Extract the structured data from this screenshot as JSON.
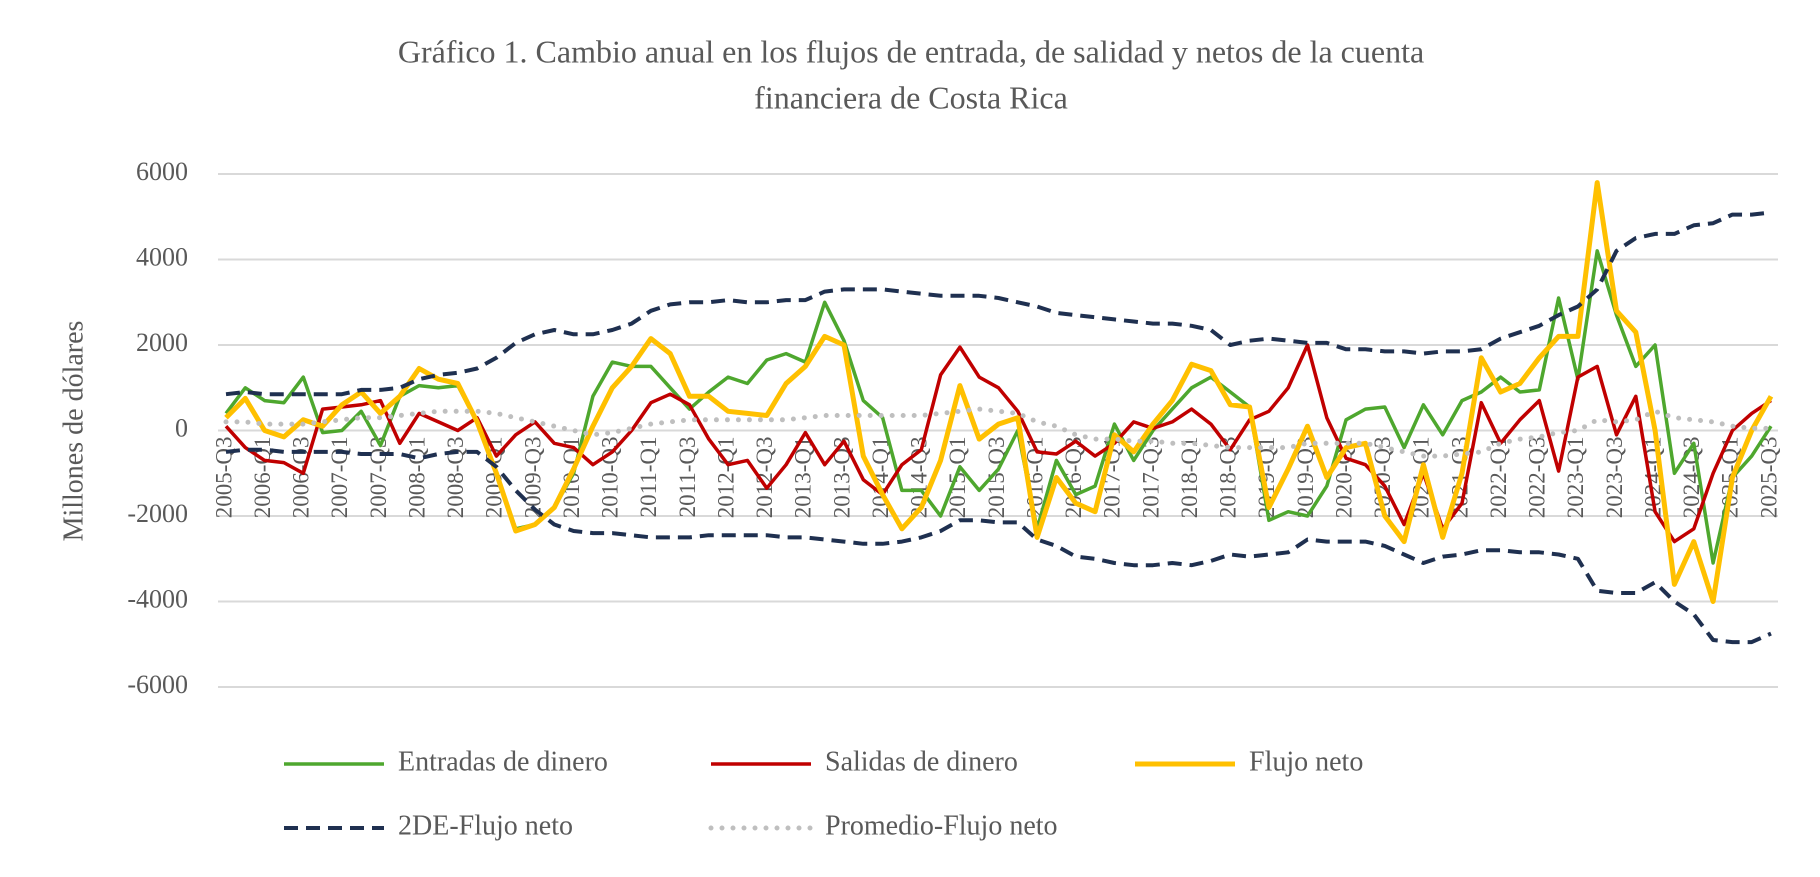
{
  "chart_data": {
    "type": "line",
    "title": "Gráfico 1. Cambio anual en los flujos de entrada, de salidad y netos de la cuenta",
    "subtitle": "financiera de Costa Rica",
    "y_label": "Millones  de dólares",
    "categories": [
      "2005-Q3",
      null,
      "2006-Q1",
      null,
      "2006-Q3",
      null,
      "2007-Q1",
      null,
      "2007-Q3",
      null,
      "2008-Q1",
      null,
      "2008-Q3",
      null,
      "2009-Q1",
      null,
      "2009-Q3",
      null,
      "2010-Q1",
      null,
      "2010-Q3",
      null,
      "2011-Q1",
      null,
      "2011-Q3",
      null,
      "2012-Q1",
      null,
      "2012-Q3",
      null,
      "2013-Q1",
      null,
      "2013-Q3",
      null,
      "2014-Q1",
      null,
      "2014-Q3",
      null,
      "2015-Q1",
      null,
      "2015-Q3",
      null,
      "2016-Q1",
      null,
      "2016-Q3",
      null,
      "2017-Q1",
      null,
      "2017-Q3",
      null,
      "2018-Q1",
      null,
      "2018-Q3",
      null,
      "2019-Q1",
      null,
      "2019-Q3",
      null,
      "2020-Q1",
      null,
      "2020-Q3",
      null,
      "2021-Q1",
      null,
      "2021-Q3",
      null,
      "2022-Q1",
      null,
      "2022-Q3",
      null,
      "2023-Q1",
      null,
      "2023-Q3",
      null,
      "2024-Q1",
      null,
      "2024-Q3",
      null,
      "2025-Q1",
      null,
      "2025-Q3"
    ],
    "series": [
      {
        "name": "Entradas de dinero",
        "color": "#4ea72e",
        "width": 3.5,
        "linestyle": "solid",
        "values": [
          400,
          1000,
          700,
          650,
          1250,
          -50,
          0,
          450,
          -350,
          800,
          1050,
          1000,
          1050,
          200,
          -1000,
          -2300,
          -2200,
          -1800,
          -1000,
          800,
          1600,
          1500,
          1500,
          1000,
          500,
          900,
          1250,
          1100,
          1650,
          1800,
          1600,
          3000,
          2100,
          700,
          300,
          -1400,
          -1400,
          -2000,
          -850,
          -1400,
          -900,
          0,
          -2300,
          -700,
          -1500,
          -1300,
          150,
          -700,
          0,
          500,
          1000,
          1250,
          900,
          550,
          -2100,
          -1900,
          -2000,
          -1300,
          250,
          500,
          550,
          -400,
          600,
          -100,
          700,
          900,
          1250,
          900,
          950,
          3100,
          1200,
          4200,
          2700,
          1500,
          2000,
          -1000,
          -300,
          -3100,
          -1100,
          -600,
          100
        ]
      },
      {
        "name": "Salidas de dinero",
        "color": "#c00000",
        "width": 3.5,
        "linestyle": "solid",
        "values": [
          100,
          -400,
          -700,
          -750,
          -1000,
          500,
          550,
          600,
          700,
          -300,
          400,
          200,
          0,
          300,
          -600,
          -100,
          200,
          -300,
          -400,
          -800,
          -500,
          0,
          650,
          850,
          600,
          -200,
          -800,
          -700,
          -1350,
          -800,
          -50,
          -800,
          -250,
          -1150,
          -1500,
          -800,
          -450,
          1300,
          1950,
          1250,
          1000,
          450,
          -500,
          -550,
          -250,
          -600,
          -300,
          200,
          50,
          200,
          500,
          150,
          -450,
          250,
          450,
          1000,
          2000,
          300,
          -650,
          -800,
          -1300,
          -2200,
          -1000,
          -2300,
          -1700,
          650,
          -300,
          250,
          700,
          -950,
          1250,
          1500,
          -100,
          800,
          -1900,
          -2600,
          -2300,
          -1000,
          0,
          400,
          700
        ]
      },
      {
        "name": "Flujo neto",
        "color": "#ffc000",
        "width": 5,
        "linestyle": "solid",
        "values": [
          300,
          750,
          0,
          -150,
          250,
          100,
          600,
          900,
          400,
          800,
          1450,
          1200,
          1100,
          200,
          -1000,
          -2350,
          -2200,
          -1800,
          -900,
          100,
          1000,
          1500,
          2150,
          1800,
          800,
          800,
          450,
          400,
          350,
          1100,
          1500,
          2200,
          2000,
          -600,
          -1500,
          -2300,
          -1800,
          -700,
          1050,
          -200,
          150,
          300,
          -2500,
          -1100,
          -1700,
          -1900,
          -100,
          -500,
          150,
          700,
          1550,
          1400,
          600,
          550,
          -1800,
          -900,
          100,
          -1100,
          -400,
          -300,
          -2000,
          -2600,
          -800,
          -2500,
          -1000,
          1700,
          900,
          1100,
          1700,
          2200,
          2200,
          5800,
          2800,
          2300,
          0,
          -3600,
          -2600,
          -4000,
          -1100,
          0,
          800
        ]
      },
      {
        "name": "2DE-Flujo neto",
        "color": "#1f3050",
        "width": 4,
        "linestyle": "dashed",
        "values": [
          850,
          900,
          850,
          850,
          850,
          850,
          850,
          950,
          950,
          1000,
          1200,
          1300,
          1350,
          1450,
          1700,
          2050,
          2250,
          2350,
          2250,
          2250,
          2350,
          2500,
          2800,
          2950,
          3000,
          3000,
          3050,
          3000,
          3000,
          3050,
          3050,
          3250,
          3300,
          3300,
          3300,
          3250,
          3200,
          3150,
          3150,
          3150,
          3100,
          3000,
          2900,
          2750,
          2700,
          2650,
          2600,
          2550,
          2500,
          2500,
          2450,
          2350,
          2000,
          2100,
          2150,
          2100,
          2050,
          2050,
          1900,
          1900,
          1850,
          1850,
          1800,
          1850,
          1850,
          1900,
          2150,
          2300,
          2450,
          2700,
          2900,
          3300,
          4200,
          4500,
          4600,
          4600,
          4800,
          4850,
          5050,
          5050,
          5100
        ]
      },
      {
        "color": "#1f3050",
        "width": 4,
        "linestyle": "dashed",
        "values": [
          -500,
          -450,
          -450,
          -500,
          -500,
          -500,
          -500,
          -550,
          -550,
          -550,
          -650,
          -550,
          -500,
          -500,
          -850,
          -1400,
          -1850,
          -2200,
          -2350,
          -2400,
          -2400,
          -2450,
          -2500,
          -2500,
          -2500,
          -2450,
          -2450,
          -2450,
          -2450,
          -2500,
          -2500,
          -2550,
          -2600,
          -2650,
          -2650,
          -2600,
          -2500,
          -2350,
          -2100,
          -2100,
          -2150,
          -2150,
          -2550,
          -2700,
          -2950,
          -3000,
          -3100,
          -3150,
          -3150,
          -3100,
          -3150,
          -3050,
          -2900,
          -2950,
          -2900,
          -2850,
          -2550,
          -2600,
          -2600,
          -2600,
          -2700,
          -2900,
          -3100,
          -2950,
          -2900,
          -2800,
          -2800,
          -2850,
          -2850,
          -2900,
          -3000,
          -3750,
          -3800,
          -3800,
          -3550,
          -4000,
          -4300,
          -4900,
          -4950,
          -4950,
          -4750
        ]
      },
      {
        "name": "Promedio-Flujo neto",
        "color": "#bfbfbf",
        "width": 5,
        "linestyle": "dotted",
        "values": [
          200,
          200,
          150,
          150,
          150,
          200,
          250,
          300,
          300,
          350,
          400,
          450,
          450,
          450,
          400,
          300,
          200,
          100,
          0,
          -100,
          -50,
          50,
          150,
          200,
          250,
          250,
          250,
          250,
          250,
          250,
          300,
          350,
          350,
          350,
          350,
          350,
          350,
          400,
          450,
          500,
          450,
          400,
          200,
          100,
          -100,
          -200,
          -200,
          -250,
          -250,
          -300,
          -300,
          -350,
          -400,
          -400,
          -400,
          -400,
          -300,
          -300,
          -300,
          -300,
          -400,
          -500,
          -600,
          -600,
          -550,
          -500,
          -300,
          -200,
          -150,
          -50,
          0,
          250,
          200,
          250,
          450,
          300,
          250,
          200,
          100,
          50,
          50
        ]
      }
    ],
    "ylim": [
      -6000,
      6000
    ],
    "yticks": [
      -6000,
      -4000,
      -2000,
      0,
      2000,
      4000,
      6000
    ],
    "grid": true
  }
}
